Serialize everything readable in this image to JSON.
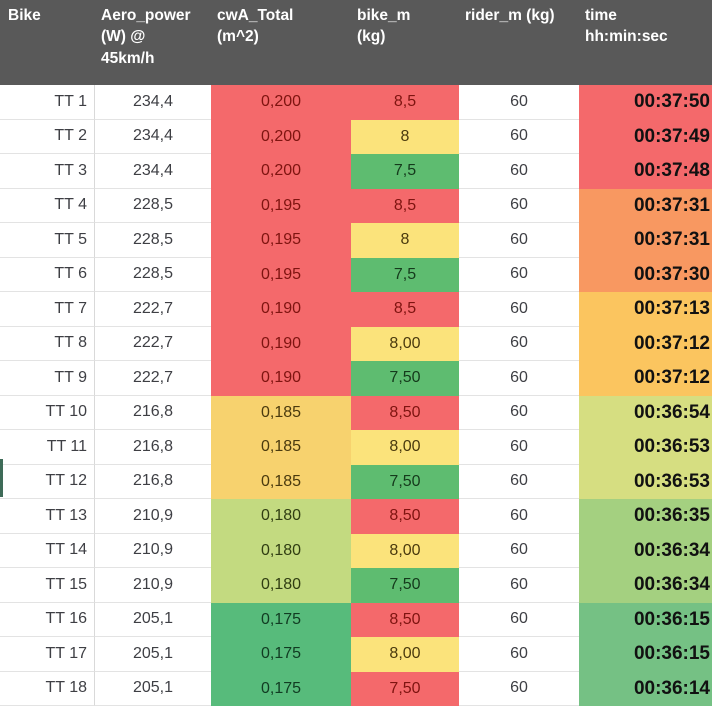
{
  "sheet": {
    "header": {
      "bg": "#595959",
      "fg": "#FFFFFF",
      "columns": [
        {
          "id": "bike",
          "label": "Bike"
        },
        {
          "id": "aero",
          "label": "Aero_power\n(W) @\n45km/h"
        },
        {
          "id": "cwa",
          "label": "cwA_Total\n(m^2)"
        },
        {
          "id": "bike_m",
          "label": "bike_m\n(kg)"
        },
        {
          "id": "rider_m",
          "label": "rider_m (kg)"
        },
        {
          "id": "time",
          "label": "time\nhh:min:sec"
        }
      ]
    },
    "palette": {
      "red": {
        "bg": "#F4696B",
        "fg": "#7E1410"
      },
      "gold": {
        "bg": "#F7D26E",
        "fg": "#4A3A0E"
      },
      "yellow_green": {
        "bg": "#C3DA80",
        "fg": "#303D12"
      },
      "green_cwa": {
        "bg": "#57BB7B",
        "fg": "#113B22"
      },
      "lemon": {
        "bg": "#FBE37B",
        "fg": "#4A3A0E"
      },
      "green_bike": {
        "bg": "#5EBC70",
        "fg": "#153A1C"
      },
      "t_red": {
        "bg": "#F4696B",
        "fg": "#111111"
      },
      "t_orange": {
        "bg": "#F89861",
        "fg": "#111111"
      },
      "t_gold": {
        "bg": "#FBC55F",
        "fg": "#111111"
      },
      "t_yellowgreen": {
        "bg": "#D6DE81",
        "fg": "#111111"
      },
      "t_lightgreen": {
        "bg": "#A4D080",
        "fg": "#111111"
      },
      "t_green": {
        "bg": "#75C184",
        "fg": "#111111"
      }
    },
    "left_mark_color": "#3E6B58",
    "rows": [
      {
        "bike": "TT 1",
        "aero": "234,4",
        "cwa": "0,200",
        "cwa_tone": "red",
        "bike_m": "8,5",
        "bike_m_tone": "red",
        "rider_m": "60",
        "time": "00:37:50",
        "time_tone": "t_red"
      },
      {
        "bike": "TT 2",
        "aero": "234,4",
        "cwa": "0,200",
        "cwa_tone": "red",
        "bike_m": "8",
        "bike_m_tone": "lemon",
        "rider_m": "60",
        "time": "00:37:49",
        "time_tone": "t_red"
      },
      {
        "bike": "TT 3",
        "aero": "234,4",
        "cwa": "0,200",
        "cwa_tone": "red",
        "bike_m": "7,5",
        "bike_m_tone": "green_bike",
        "rider_m": "60",
        "time": "00:37:48",
        "time_tone": "t_red"
      },
      {
        "bike": "TT 4",
        "aero": "228,5",
        "cwa": "0,195",
        "cwa_tone": "red",
        "bike_m": "8,5",
        "bike_m_tone": "red",
        "rider_m": "60",
        "time": "00:37:31",
        "time_tone": "t_orange"
      },
      {
        "bike": "TT 5",
        "aero": "228,5",
        "cwa": "0,195",
        "cwa_tone": "red",
        "bike_m": "8",
        "bike_m_tone": "lemon",
        "rider_m": "60",
        "time": "00:37:31",
        "time_tone": "t_orange"
      },
      {
        "bike": "TT 6",
        "aero": "228,5",
        "cwa": "0,195",
        "cwa_tone": "red",
        "bike_m": "7,5",
        "bike_m_tone": "green_bike",
        "rider_m": "60",
        "time": "00:37:30",
        "time_tone": "t_orange"
      },
      {
        "bike": "TT 7",
        "aero": "222,7",
        "cwa": "0,190",
        "cwa_tone": "red",
        "bike_m": "8,5",
        "bike_m_tone": "red",
        "rider_m": "60",
        "time": "00:37:13",
        "time_tone": "t_gold"
      },
      {
        "bike": "TT 8",
        "aero": "222,7",
        "cwa": "0,190",
        "cwa_tone": "red",
        "bike_m": "8,00",
        "bike_m_tone": "lemon",
        "rider_m": "60",
        "time": "00:37:12",
        "time_tone": "t_gold"
      },
      {
        "bike": "TT 9",
        "aero": "222,7",
        "cwa": "0,190",
        "cwa_tone": "red",
        "bike_m": "7,50",
        "bike_m_tone": "green_bike",
        "rider_m": "60",
        "time": "00:37:12",
        "time_tone": "t_gold"
      },
      {
        "bike": "TT 10",
        "aero": "216,8",
        "cwa": "0,185",
        "cwa_tone": "gold",
        "bike_m": "8,50",
        "bike_m_tone": "red",
        "rider_m": "60",
        "time": "00:36:54",
        "time_tone": "t_yellowgreen"
      },
      {
        "bike": "TT 11",
        "aero": "216,8",
        "cwa": "0,185",
        "cwa_tone": "gold",
        "bike_m": "8,00",
        "bike_m_tone": "lemon",
        "rider_m": "60",
        "time": "00:36:53",
        "time_tone": "t_yellowgreen"
      },
      {
        "bike": "TT 12",
        "aero": "216,8",
        "cwa": "0,185",
        "cwa_tone": "gold",
        "bike_m": "7,50",
        "bike_m_tone": "green_bike",
        "rider_m": "60",
        "time": "00:36:53",
        "time_tone": "t_yellowgreen"
      },
      {
        "bike": "TT 13",
        "aero": "210,9",
        "cwa": "0,180",
        "cwa_tone": "yellow_green",
        "bike_m": "8,50",
        "bike_m_tone": "red",
        "rider_m": "60",
        "time": "00:36:35",
        "time_tone": "t_lightgreen"
      },
      {
        "bike": "TT 14",
        "aero": "210,9",
        "cwa": "0,180",
        "cwa_tone": "yellow_green",
        "bike_m": "8,00",
        "bike_m_tone": "lemon",
        "rider_m": "60",
        "time": "00:36:34",
        "time_tone": "t_lightgreen"
      },
      {
        "bike": "TT 15",
        "aero": "210,9",
        "cwa": "0,180",
        "cwa_tone": "yellow_green",
        "bike_m": "7,50",
        "bike_m_tone": "green_bike",
        "rider_m": "60",
        "time": "00:36:34",
        "time_tone": "t_lightgreen"
      },
      {
        "bike": "TT 16",
        "aero": "205,1",
        "cwa": "0,175",
        "cwa_tone": "green_cwa",
        "bike_m": "8,50",
        "bike_m_tone": "red",
        "rider_m": "60",
        "time": "00:36:15",
        "time_tone": "t_green"
      },
      {
        "bike": "TT 17",
        "aero": "205,1",
        "cwa": "0,175",
        "cwa_tone": "green_cwa",
        "bike_m": "8,00",
        "bike_m_tone": "lemon",
        "rider_m": "60",
        "time": "00:36:15",
        "time_tone": "t_green"
      },
      {
        "bike": "TT 18",
        "aero": "205,1",
        "cwa": "0,175",
        "cwa_tone": "green_cwa",
        "bike_m": "7,50",
        "bike_m_tone": "red",
        "rider_m": "60",
        "time": "00:36:14",
        "time_tone": "t_green"
      }
    ]
  }
}
